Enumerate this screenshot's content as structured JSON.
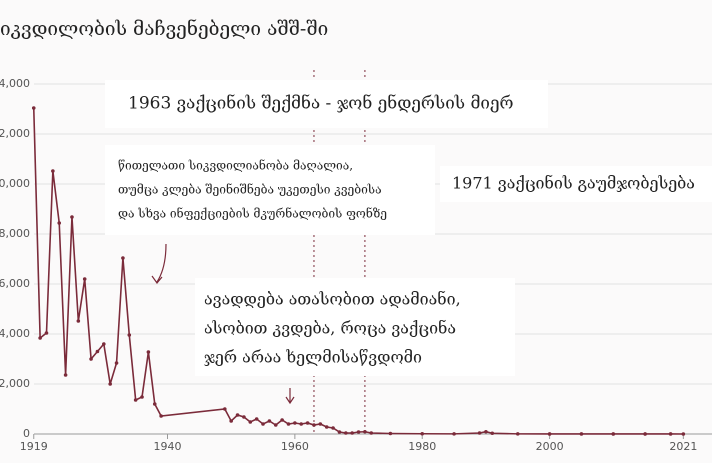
{
  "chart_data": {
    "type": "line",
    "title": "იკვდილობის მაჩვენებელი აშშ-ში",
    "x": [
      1919,
      1920,
      1921,
      1922,
      1923,
      1924,
      1925,
      1926,
      1927,
      1928,
      1929,
      1930,
      1931,
      1932,
      1933,
      1934,
      1935,
      1936,
      1937,
      1938,
      1939,
      1949,
      1950,
      1951,
      1952,
      1953,
      1954,
      1955,
      1956,
      1957,
      1958,
      1959,
      1960,
      1961,
      1962,
      1963,
      1964,
      1965,
      1966,
      1967,
      1968,
      1969,
      1970,
      1971,
      1972,
      1975,
      1980,
      1985,
      1989,
      1990,
      1991,
      1995,
      2000,
      2005,
      2010,
      2015,
      2019,
      2021
    ],
    "series": [
      {
        "name": "deaths",
        "color": "#7b2b3a",
        "values": [
          13040,
          3840,
          4040,
          10520,
          8440,
          2360,
          8680,
          4520,
          6200,
          3000,
          3300,
          3600,
          2000,
          2840,
          7040,
          3960,
          1360,
          1480,
          3280,
          1200,
          720,
          1000,
          520,
          760,
          680,
          480,
          600,
          400,
          520,
          360,
          560,
          400,
          440,
          400,
          440,
          360,
          400,
          280,
          240,
          80,
          40,
          40,
          80,
          90,
          40,
          20,
          10,
          5,
          40,
          90,
          30,
          5,
          2,
          1,
          2,
          2,
          1,
          0
        ]
      }
    ],
    "xlim": [
      1913.7,
      2025.5
    ],
    "xticks": [
      1919,
      1940,
      1960,
      1980,
      2000,
      2021
    ],
    "ylim": [
      0,
      14000
    ],
    "yticks": [
      0,
      {
        "value": 2000,
        "label": "2,000"
      },
      {
        "value": 4000,
        "label": "4,000"
      },
      {
        "value": 6000,
        "label": "6,000"
      },
      {
        "value": 8000,
        "label": "8,000"
      },
      {
        "value": 10000,
        "label": "10,000"
      },
      {
        "value": 12000,
        "label": "12,000"
      },
      {
        "value": 14000,
        "label": "14,000"
      }
    ],
    "grid": true,
    "annotations": [
      {
        "x": 1963,
        "lines": [
          "1963 ვაქცინის შექმნა - ჯონ ენდერსის მიერ"
        ]
      },
      {
        "x": 1971,
        "lines": [
          "1971 ვაქცინის გაუმჯობესება"
        ]
      },
      {
        "lines": [
          "წითელათი სიკვდილიანობა მაღალია,",
          "თუმცა კლება შეინიშნება უკეთესი კვებისა",
          "და სხვა ინფექციების მკურნალობის ფონზე"
        ]
      },
      {
        "lines": [
          "ავადდება ათასობით ადამიანი,",
          "ასობით კვდება, როცა ვაქცინა",
          "ჯერ არაა ხელმისაწვდომი"
        ]
      }
    ]
  }
}
